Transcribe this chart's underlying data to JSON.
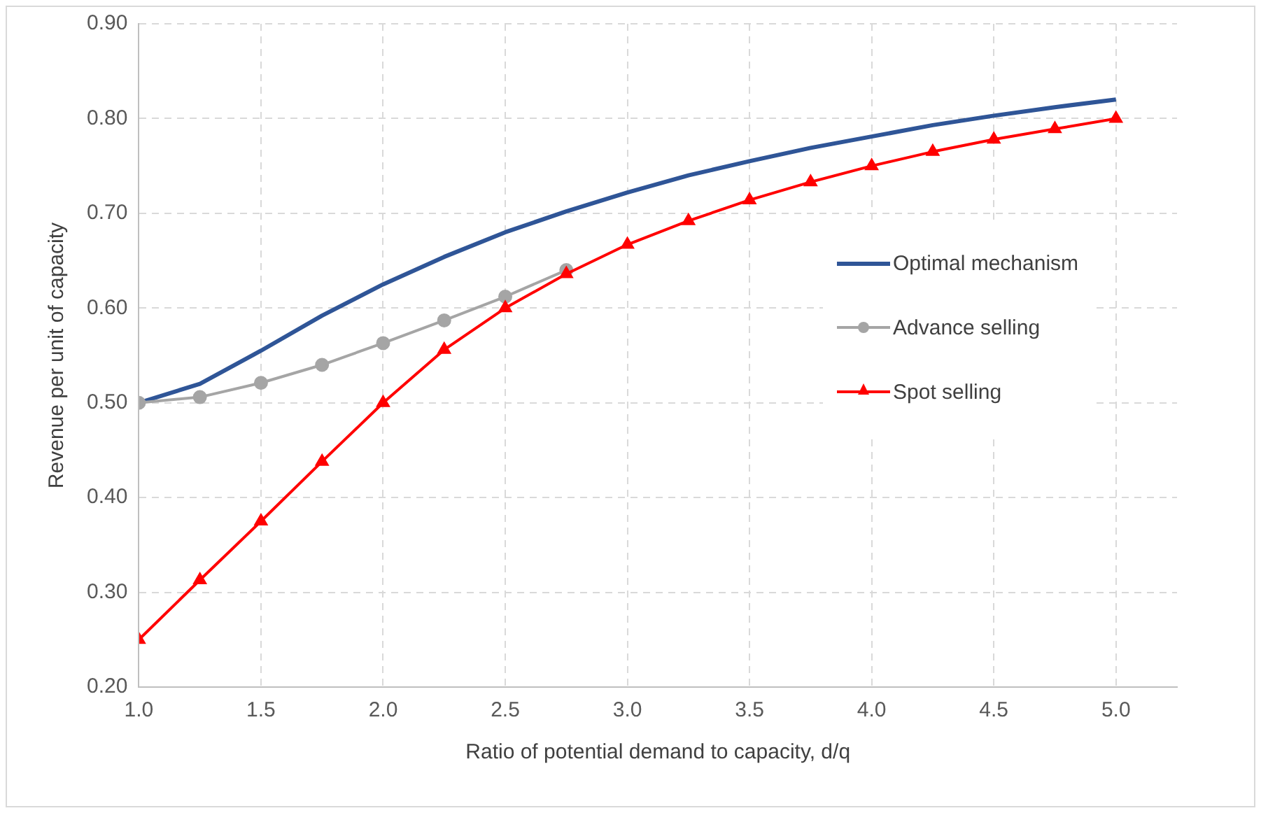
{
  "chart_data": {
    "type": "line",
    "xlabel": "Ratio of potential demand to capacity, d/q",
    "ylabel": "Revenue per unit of capacity",
    "x": [
      1.0,
      1.25,
      1.5,
      1.75,
      2.0,
      2.25,
      2.5,
      2.75,
      3.0,
      3.25,
      3.5,
      3.75,
      4.0,
      4.25,
      4.5,
      4.75,
      5.0
    ],
    "series": [
      {
        "name": "Optimal mechanism",
        "color": "#2f5597",
        "marker": "none",
        "values": [
          0.5,
          0.52,
          0.555,
          0.592,
          0.625,
          0.654,
          0.68,
          0.702,
          0.722,
          0.74,
          0.755,
          0.769,
          0.781,
          0.793,
          0.803,
          0.812,
          0.82
        ]
      },
      {
        "name": "Advance selling",
        "color": "#a5a5a5",
        "marker": "circle",
        "values": [
          0.5,
          0.506,
          0.521,
          0.54,
          0.563,
          0.587,
          0.612,
          0.64,
          null,
          null,
          null,
          null,
          null,
          null,
          null,
          null,
          null
        ]
      },
      {
        "name": "Spot selling",
        "color": "#ff0000",
        "marker": "triangle",
        "values": [
          0.25,
          0.313,
          0.375,
          0.438,
          0.5,
          0.556,
          0.6,
          0.636,
          0.667,
          0.692,
          0.714,
          0.733,
          0.75,
          0.765,
          0.778,
          0.789,
          0.8
        ]
      }
    ],
    "xlim": [
      1,
      5.25
    ],
    "xticks": [
      {
        "value": 1,
        "label": "1.0"
      },
      1.5,
      {
        "value": 2,
        "label": "2.0"
      },
      2.5,
      {
        "value": 3,
        "label": "3.0"
      },
      3.5,
      {
        "value": 4,
        "label": "4.0"
      },
      4.5,
      {
        "value": 5,
        "label": "5.0"
      }
    ],
    "ylim": [
      0.2,
      0.9
    ],
    "yticks": [
      {
        "value": 0.2,
        "label": "0.20"
      },
      {
        "value": 0.3,
        "label": "0.30"
      },
      {
        "value": 0.4,
        "label": "0.40"
      },
      {
        "value": 0.5,
        "label": "0.50"
      },
      {
        "value": 0.6,
        "label": "0.60"
      },
      {
        "value": 0.7,
        "label": "0.70"
      },
      {
        "value": 0.8,
        "label": "0.80"
      },
      {
        "value": 0.9,
        "label": "0.90"
      }
    ],
    "grid": true,
    "legend": "right",
    "line_style": "solid"
  }
}
